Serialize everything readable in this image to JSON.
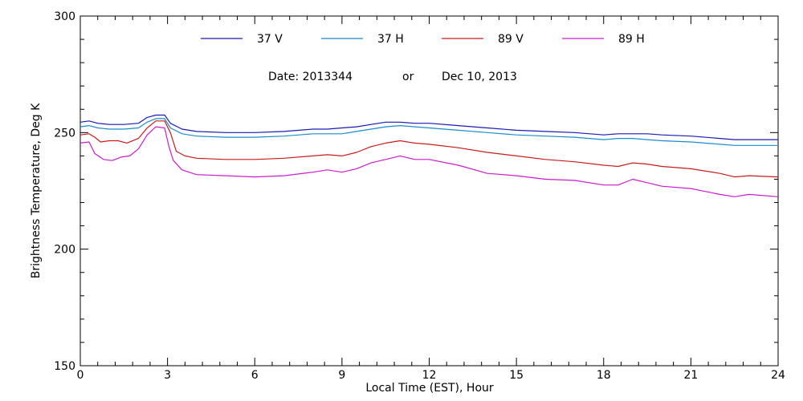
{
  "chart_data": {
    "type": "line",
    "title": "",
    "xlabel": "Local Time (EST), Hour",
    "ylabel": "Brightness Temperature, Deg K",
    "xlim": [
      0,
      24
    ],
    "ylim": [
      150,
      300
    ],
    "xticks": [
      0,
      3,
      6,
      9,
      12,
      15,
      18,
      21,
      24
    ],
    "yticks": [
      150,
      200,
      250,
      300
    ],
    "grid": false,
    "legend_position": "top-center",
    "annotation": {
      "date_label": "Date: 2013344",
      "or_label": "or",
      "date_text": "Dec 10, 2013"
    },
    "series": [
      {
        "name": "37 V",
        "color": "#1a1ab4",
        "x": [
          0,
          0.3,
          0.6,
          1,
          1.5,
          2,
          2.3,
          2.6,
          2.9,
          3.1,
          3.5,
          4,
          5,
          6,
          7,
          8,
          8.5,
          9,
          9.5,
          10,
          10.5,
          11,
          11.5,
          12,
          13,
          14,
          15,
          16,
          17,
          18,
          18.5,
          19,
          19.5,
          20,
          21,
          22,
          22.5,
          23,
          24
        ],
        "y": [
          254.5,
          255,
          254,
          253.5,
          253.5,
          254,
          256.5,
          257.5,
          257.5,
          254,
          251.5,
          250.5,
          250,
          250,
          250.5,
          251.5,
          251.5,
          252,
          252.5,
          253.5,
          254.5,
          254.5,
          254,
          254,
          253,
          252,
          251,
          250.5,
          250,
          249,
          249.5,
          249.5,
          249.5,
          249,
          248.5,
          247.5,
          247,
          247,
          247
        ]
      },
      {
        "name": "37 H",
        "color": "#1a8ccc",
        "x": [
          0,
          0.3,
          0.6,
          1,
          1.5,
          2,
          2.3,
          2.6,
          2.9,
          3.1,
          3.5,
          4,
          5,
          6,
          7,
          8,
          8.5,
          9,
          9.5,
          10,
          10.5,
          11,
          11.5,
          12,
          13,
          14,
          15,
          16,
          17,
          18,
          18.5,
          19,
          19.5,
          20,
          21,
          22,
          22.5,
          23,
          24
        ],
        "y": [
          252.5,
          253,
          252,
          251.5,
          251.5,
          252,
          254.5,
          256,
          256,
          252,
          249.5,
          248.5,
          248,
          248,
          248.5,
          249.5,
          249.5,
          249.5,
          250.5,
          251.5,
          252.5,
          253,
          252.5,
          252,
          251,
          250,
          249,
          248.5,
          248,
          247,
          247.5,
          247.5,
          247,
          246.5,
          246,
          245,
          244.5,
          244.5,
          244.5
        ]
      },
      {
        "name": "89 V",
        "color": "#cc1a1a",
        "x": [
          0,
          0.3,
          0.5,
          0.7,
          1,
          1.3,
          1.6,
          2,
          2.3,
          2.6,
          2.9,
          3.1,
          3.3,
          3.6,
          4,
          5,
          6,
          7,
          8,
          8.5,
          9,
          9.5,
          10,
          10.5,
          11,
          11.5,
          12,
          13,
          14,
          15,
          16,
          17,
          18,
          18.5,
          19,
          19.5,
          20,
          21,
          22,
          22.5,
          23,
          24
        ],
        "y": [
          249,
          249.5,
          248,
          246,
          246.5,
          246.5,
          245.5,
          247.5,
          252,
          255,
          255,
          250,
          242,
          240,
          239,
          238.5,
          238.5,
          239,
          240,
          240.5,
          240,
          241.5,
          244,
          245.5,
          246.5,
          245.5,
          245,
          243.5,
          241.5,
          240,
          238.5,
          237.5,
          236,
          235.5,
          237,
          236.5,
          235.5,
          234.5,
          232.5,
          231,
          231.5,
          231
        ]
      },
      {
        "name": "89 H",
        "color": "#cc1acc",
        "x": [
          0,
          0.3,
          0.5,
          0.8,
          1.1,
          1.4,
          1.7,
          2,
          2.3,
          2.6,
          2.9,
          3.05,
          3.2,
          3.5,
          4,
          5,
          6,
          7,
          8,
          8.5,
          9,
          9.5,
          10,
          10.5,
          11,
          11.5,
          12,
          13,
          14,
          15,
          16,
          17,
          18,
          18.5,
          19,
          19.5,
          20,
          21,
          22,
          22.5,
          23,
          24
        ],
        "y": [
          245.5,
          246,
          241,
          238.5,
          238,
          239.5,
          240,
          243,
          249,
          252.5,
          252,
          244,
          238,
          234,
          232,
          231.5,
          231,
          231.5,
          233,
          234,
          233,
          234.5,
          237,
          238.5,
          240,
          238.5,
          238.5,
          236,
          232.5,
          231.5,
          230,
          229.5,
          227.5,
          227.5,
          230,
          228.5,
          227,
          226,
          223.5,
          222.5,
          223.5,
          222.5
        ]
      }
    ]
  }
}
